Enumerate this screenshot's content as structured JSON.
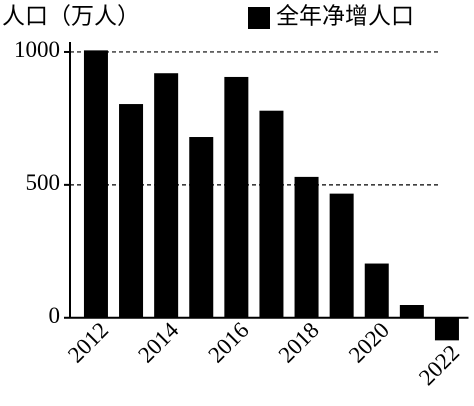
{
  "chart_data": {
    "type": "bar",
    "title": "人口（万人）",
    "categories": [
      "2012",
      null,
      "2014",
      null,
      "2016",
      null,
      "2018",
      null,
      "2020",
      null,
      "2022"
    ],
    "series": [
      {
        "name": "全年净增人口",
        "color": "#000000",
        "values": [
          1006,
          804,
          920,
          680,
          906,
          779,
          530,
          467,
          204,
          48,
          -85
        ]
      }
    ],
    "ylim": [
      -110,
      1045
    ],
    "yticks": [
      0,
      500,
      1000
    ],
    "grid": true
  }
}
